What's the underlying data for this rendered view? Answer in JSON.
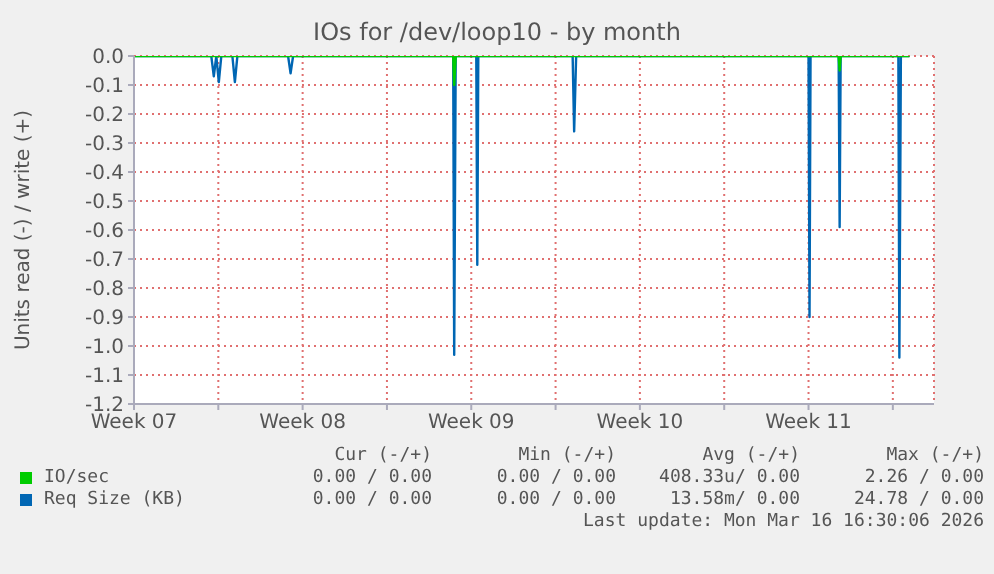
{
  "chart_data": {
    "type": "line",
    "title": "IOs for /dev/loop10 - by month",
    "ylabel": "Units read (-) / write (+)",
    "xlim": [
      "2026-02-12T12:00",
      "2026-03-17T17:00"
    ],
    "xticks": [
      {
        "value": "2026-02-12T12:00",
        "label": "Week 07"
      },
      {
        "value": "2026-02-16",
        "label": null
      },
      {
        "value": "2026-02-19T12:00",
        "label": "Week 08"
      },
      {
        "value": "2026-02-23",
        "label": null
      },
      {
        "value": "2026-02-26T12:00",
        "label": "Week 09"
      },
      {
        "value": "2026-03-02",
        "label": null
      },
      {
        "value": "2026-03-05T12:00",
        "label": "Week 10"
      },
      {
        "value": "2026-03-09",
        "label": null
      },
      {
        "value": "2026-03-12T12:00",
        "label": "Week 11"
      },
      {
        "value": "2026-03-16",
        "label": null
      }
    ],
    "ylim": [
      -1.2,
      0
    ],
    "yticks": [
      {
        "value": 0,
        "label": "0.0"
      },
      {
        "value": -0.1,
        "label": "-0.1"
      },
      {
        "value": -0.2,
        "label": "-0.2"
      },
      {
        "value": -0.3,
        "label": "-0.3"
      },
      {
        "value": -0.4,
        "label": "-0.4"
      },
      {
        "value": -0.5,
        "label": "-0.5"
      },
      {
        "value": -0.6,
        "label": "-0.6"
      },
      {
        "value": -0.7,
        "label": "-0.7"
      },
      {
        "value": -0.8,
        "label": "-0.8"
      },
      {
        "value": -0.9,
        "label": "-0.9"
      },
      {
        "value": -1.0,
        "label": "-1.0"
      },
      {
        "value": -1.1,
        "label": "-1.1"
      },
      {
        "value": -1.2,
        "label": "-1.2"
      }
    ],
    "grid": true,
    "legend": "bottom",
    "marker": "none",
    "line_style": "solid",
    "series": [
      {
        "name": "IO/sec",
        "color": "#00cc00",
        "x": [
          "2026-02-12T12:00",
          "2026-02-25T18:00",
          "2026-02-25T19:00",
          "2026-02-25T20:30",
          "2026-03-13T18:00",
          "2026-03-13T19:00",
          "2026-03-13T20:00",
          "2026-03-16T16:30"
        ],
        "values": [
          0,
          0,
          -0.1,
          0,
          0,
          -0.05,
          0,
          0
        ]
      },
      {
        "name": "Req Size (KB)",
        "color": "#0066b3",
        "x": [
          "2026-02-12T12:00",
          "2026-02-15T17:00",
          "2026-02-15T19:30",
          "2026-02-15T22:00",
          "2026-02-16T00:30",
          "2026-02-16T03:00",
          "2026-02-16T14:00",
          "2026-02-16T16:30",
          "2026-02-16T19:00",
          "2026-02-18T21:30",
          "2026-02-19T00:00",
          "2026-02-19T02:30",
          "2026-02-25T18:00",
          "2026-02-25T19:00",
          "2026-02-25T20:30",
          "2026-02-26T17:00",
          "2026-02-26T18:00",
          "2026-02-26T19:00",
          "2026-03-02T17:00",
          "2026-03-02T18:30",
          "2026-03-02T20:30",
          "2026-03-12T12:00",
          "2026-03-12T13:00",
          "2026-03-12T14:00",
          "2026-03-13T18:00",
          "2026-03-13T19:00",
          "2026-03-13T20:00",
          "2026-03-16T05:30",
          "2026-03-16T06:30",
          "2026-03-16T08:00",
          "2026-03-16T16:30"
        ],
        "values": [
          0,
          0,
          -0.07,
          0,
          -0.09,
          0,
          0,
          -0.09,
          0,
          0,
          -0.06,
          0,
          0,
          -1.03,
          0,
          0,
          -0.72,
          0,
          0,
          -0.26,
          0,
          0,
          -0.9,
          0,
          0,
          -0.59,
          0,
          0,
          -1.04,
          0,
          0
        ]
      }
    ],
    "annotations": [
      "Cur (-/+)",
      "Min (-/+)",
      "Avg (-/+)",
      "Max (-/+)",
      "0.00 / 0.00",
      "0.00 / 0.00",
      "408.33u/ 0.00",
      "2.26 / 0.00",
      "0.00 / 0.00",
      "0.00 / 0.00",
      "13.58m/ 0.00",
      "24.78 / 0.00",
      "Last update: Mon Mar 16 16:30:06 2026"
    ]
  }
}
